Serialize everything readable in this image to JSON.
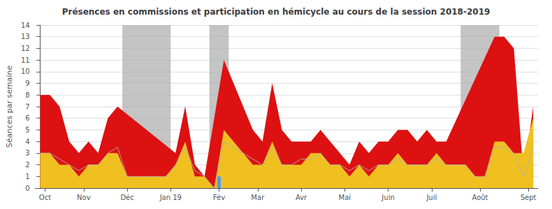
{
  "chart_data": {
    "type": "area",
    "title": "Présences en commissions et participation en hémicycle au cours de la session 2018-2019",
    "y_label": "Séances par semaine",
    "xlim": [
      -0.5,
      51.5
    ],
    "xticks": [
      {
        "value": 0.5,
        "label": "Oct"
      },
      {
        "value": 4.5,
        "label": "Nov"
      },
      {
        "value": 9.0,
        "label": "Déc"
      },
      {
        "value": 13.5,
        "label": "Jan 19"
      },
      {
        "value": 18.5,
        "label": "Fév"
      },
      {
        "value": 22.5,
        "label": "Mar"
      },
      {
        "value": 27.0,
        "label": "Avr"
      },
      {
        "value": 31.5,
        "label": "Mai"
      },
      {
        "value": 36.0,
        "label": "Juin"
      },
      {
        "value": 40.5,
        "label": "Juil"
      },
      {
        "value": 45.5,
        "label": "Août"
      },
      {
        "value": 50.5,
        "label": "Sept"
      }
    ],
    "ylim": [
      0,
      14
    ],
    "yticks": [
      0,
      1,
      2,
      3,
      4,
      5,
      6,
      7,
      8,
      9,
      10,
      11,
      12,
      13,
      14
    ],
    "grid": true,
    "shaded_ranges": [
      [
        8.5,
        13.5
      ],
      [
        17.5,
        19.5
      ],
      [
        43.5,
        47.5
      ]
    ],
    "shaded_color": "#b0b0b0",
    "series": [
      {
        "type": "area",
        "color": "#c8c8c8",
        "x": [
          0,
          1,
          2,
          3,
          4,
          5,
          6,
          7,
          8,
          9,
          10,
          11,
          12,
          13,
          14,
          15,
          16,
          17,
          18,
          19,
          20,
          21,
          22,
          23,
          24,
          25,
          26,
          27,
          28,
          29,
          30,
          31,
          32,
          33,
          34,
          35,
          36,
          37,
          38,
          39,
          40,
          41,
          42,
          43,
          44,
          45,
          46,
          47,
          48,
          49,
          50,
          51
        ],
        "values": [
          8,
          8,
          7,
          4,
          3,
          4,
          3,
          6,
          7,
          1,
          1,
          1,
          1,
          1,
          3,
          7,
          2,
          1,
          0,
          11,
          9,
          7,
          5,
          4,
          9,
          5,
          4,
          4,
          4,
          5,
          4,
          3,
          2,
          4,
          3,
          4,
          4,
          5,
          5,
          4,
          5,
          4,
          4,
          3,
          3,
          1,
          1,
          13,
          13,
          12,
          1,
          7
        ]
      },
      {
        "type": "area",
        "color": "#dd1111",
        "x": [
          0,
          1,
          2,
          3,
          4,
          5,
          6,
          7,
          8,
          14,
          15,
          16,
          17,
          19,
          20,
          21,
          22,
          23,
          24,
          25,
          26,
          27,
          28,
          29,
          30,
          31,
          32,
          33,
          34,
          35,
          36,
          37,
          38,
          39,
          40,
          41,
          42,
          47,
          48,
          49,
          50,
          51
        ],
        "values": [
          8,
          8,
          7,
          4,
          3,
          4,
          3,
          6,
          7,
          3,
          7,
          2,
          1,
          11,
          9,
          7,
          5,
          4,
          9,
          5,
          4,
          4,
          4,
          5,
          4,
          3,
          2,
          4,
          3,
          4,
          4,
          5,
          5,
          4,
          5,
          4,
          4,
          13,
          13,
          12,
          1,
          7
        ]
      },
      {
        "type": "area",
        "color": "#f0c020",
        "x": [
          0,
          1,
          2,
          3,
          4,
          5,
          6,
          7,
          8,
          9,
          10,
          11,
          12,
          13,
          14,
          15,
          16,
          17,
          18,
          19,
          20,
          21,
          22,
          23,
          24,
          25,
          26,
          27,
          28,
          29,
          30,
          31,
          32,
          33,
          34,
          35,
          36,
          37,
          38,
          39,
          40,
          41,
          42,
          43,
          44,
          45,
          46,
          47,
          48,
          49,
          50,
          51
        ],
        "values": [
          3,
          3,
          2,
          2,
          1,
          2,
          2,
          3,
          3,
          1,
          1,
          1,
          1,
          1,
          2,
          4,
          1,
          1,
          0,
          5,
          4,
          3,
          2,
          2,
          4,
          2,
          2,
          2,
          3,
          3,
          2,
          2,
          1,
          2,
          1,
          2,
          2,
          3,
          2,
          2,
          2,
          3,
          2,
          2,
          2,
          1,
          1,
          4,
          4,
          3,
          3,
          6
        ]
      },
      {
        "type": "line",
        "color": "#b0b0b0",
        "x": [
          0,
          1,
          2,
          3,
          4,
          5,
          6,
          7,
          8,
          9,
          10,
          11,
          12,
          13,
          14,
          15,
          16,
          17,
          18,
          19,
          20,
          21,
          22,
          23,
          24,
          25,
          26,
          27,
          28,
          29,
          30,
          31,
          32,
          33,
          34,
          35,
          36,
          37,
          38,
          39,
          40,
          41,
          42,
          43,
          44,
          45,
          46,
          47,
          48,
          49,
          50,
          51
        ],
        "values": [
          3,
          3,
          2.5,
          2,
          1.5,
          2,
          2,
          3,
          3.5,
          1,
          1,
          1,
          1,
          1,
          2,
          3.5,
          1.5,
          1,
          0,
          4,
          3.5,
          3,
          2.5,
          2,
          3.5,
          2,
          2,
          2.5,
          2.5,
          3,
          2,
          2,
          1.5,
          2,
          1.5,
          2,
          2,
          2.5,
          2,
          2,
          2,
          2.5,
          2,
          2,
          2,
          1,
          1,
          3.5,
          3.5,
          3,
          1,
          3.5
        ]
      },
      {
        "type": "bar",
        "color": "#5599ee",
        "x": [
          18.5
        ],
        "values": [
          1.0
        ]
      }
    ]
  }
}
